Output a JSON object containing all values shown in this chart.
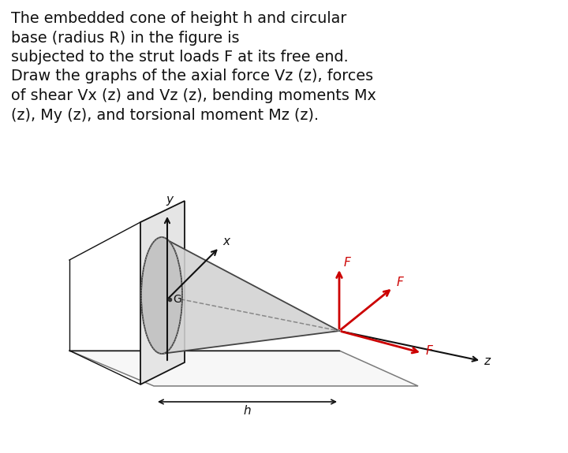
{
  "text_block_lines": [
    "The embedded cone of height h and circular",
    "base (radius R) in the figure is",
    "subjected to the strut loads F at its free end.",
    "Draw the graphs of the axial force Vz (z), forces",
    "of shear Vx (z) and Vz (z), bending moments Mx",
    "(z), My (z), and torsional moment Mz (z)."
  ],
  "background_color": "#ffffff",
  "text_color": "#111111",
  "axis_color": "#111111",
  "force_color": "#cc0000",
  "cone_face_color": "#d2d2d2",
  "cone_edge_color": "#444444",
  "wall_face_color": "#e5e5e5",
  "floor_face_color": "#f2f2f2",
  "text_fontsize": 13.8,
  "label_y": "y",
  "label_x": "x",
  "label_z": "z",
  "label_h": "h",
  "label_G": "G",
  "label_F": "F"
}
